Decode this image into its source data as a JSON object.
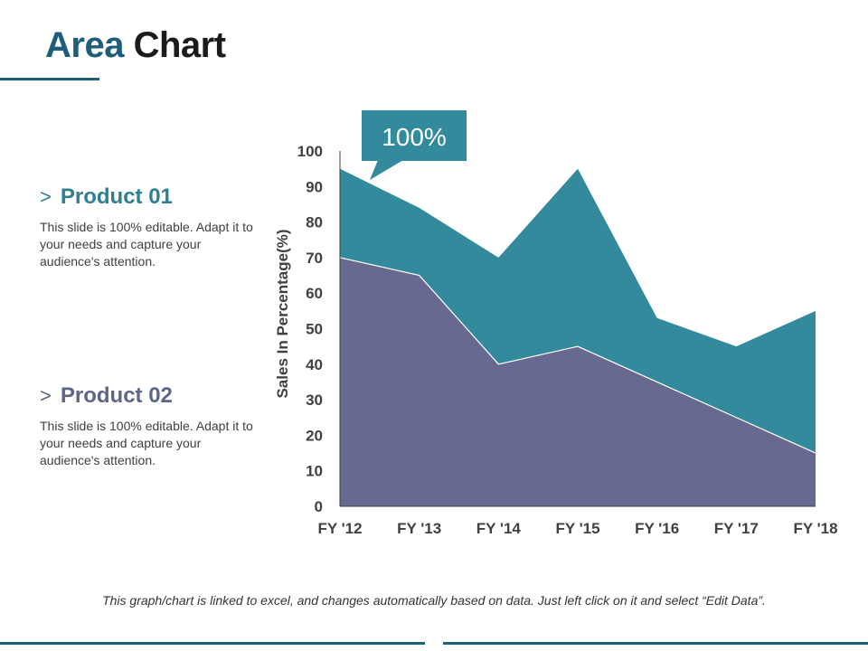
{
  "header": {
    "title_part1": "Area",
    "title_part2": "Chart"
  },
  "products": [
    {
      "chevron": ">",
      "title": "Product 01",
      "description": "This slide is 100% editable. Adapt it to your needs and capture your audience's attention."
    },
    {
      "chevron": ">",
      "title": "Product 02",
      "description": "This slide is 100% editable. Adapt it to your needs and capture your audience's attention."
    }
  ],
  "footer": {
    "note": "This graph/chart is linked to excel, and changes automatically based on data. Just left click on it and select “Edit Data”."
  },
  "chart_data": {
    "type": "area",
    "categories": [
      "FY '12",
      "FY '13",
      "FY '14",
      "FY '15",
      "FY '16",
      "FY '17",
      "FY '18"
    ],
    "series": [
      {
        "values": [
          70,
          65,
          40,
          45,
          35,
          25,
          15
        ],
        "color": "#676990"
      },
      {
        "values": [
          95,
          84,
          70,
          95,
          53,
          45,
          55
        ],
        "color": "#338a9c"
      }
    ],
    "ylabel": "Sales In Percentage(%)",
    "ylim": [
      0,
      100
    ],
    "yticks": [
      0,
      10,
      20,
      30,
      40,
      50,
      60,
      70,
      80,
      90,
      100
    ],
    "grid": false,
    "callout": {
      "text": "100%",
      "color": "#338a9c"
    }
  }
}
